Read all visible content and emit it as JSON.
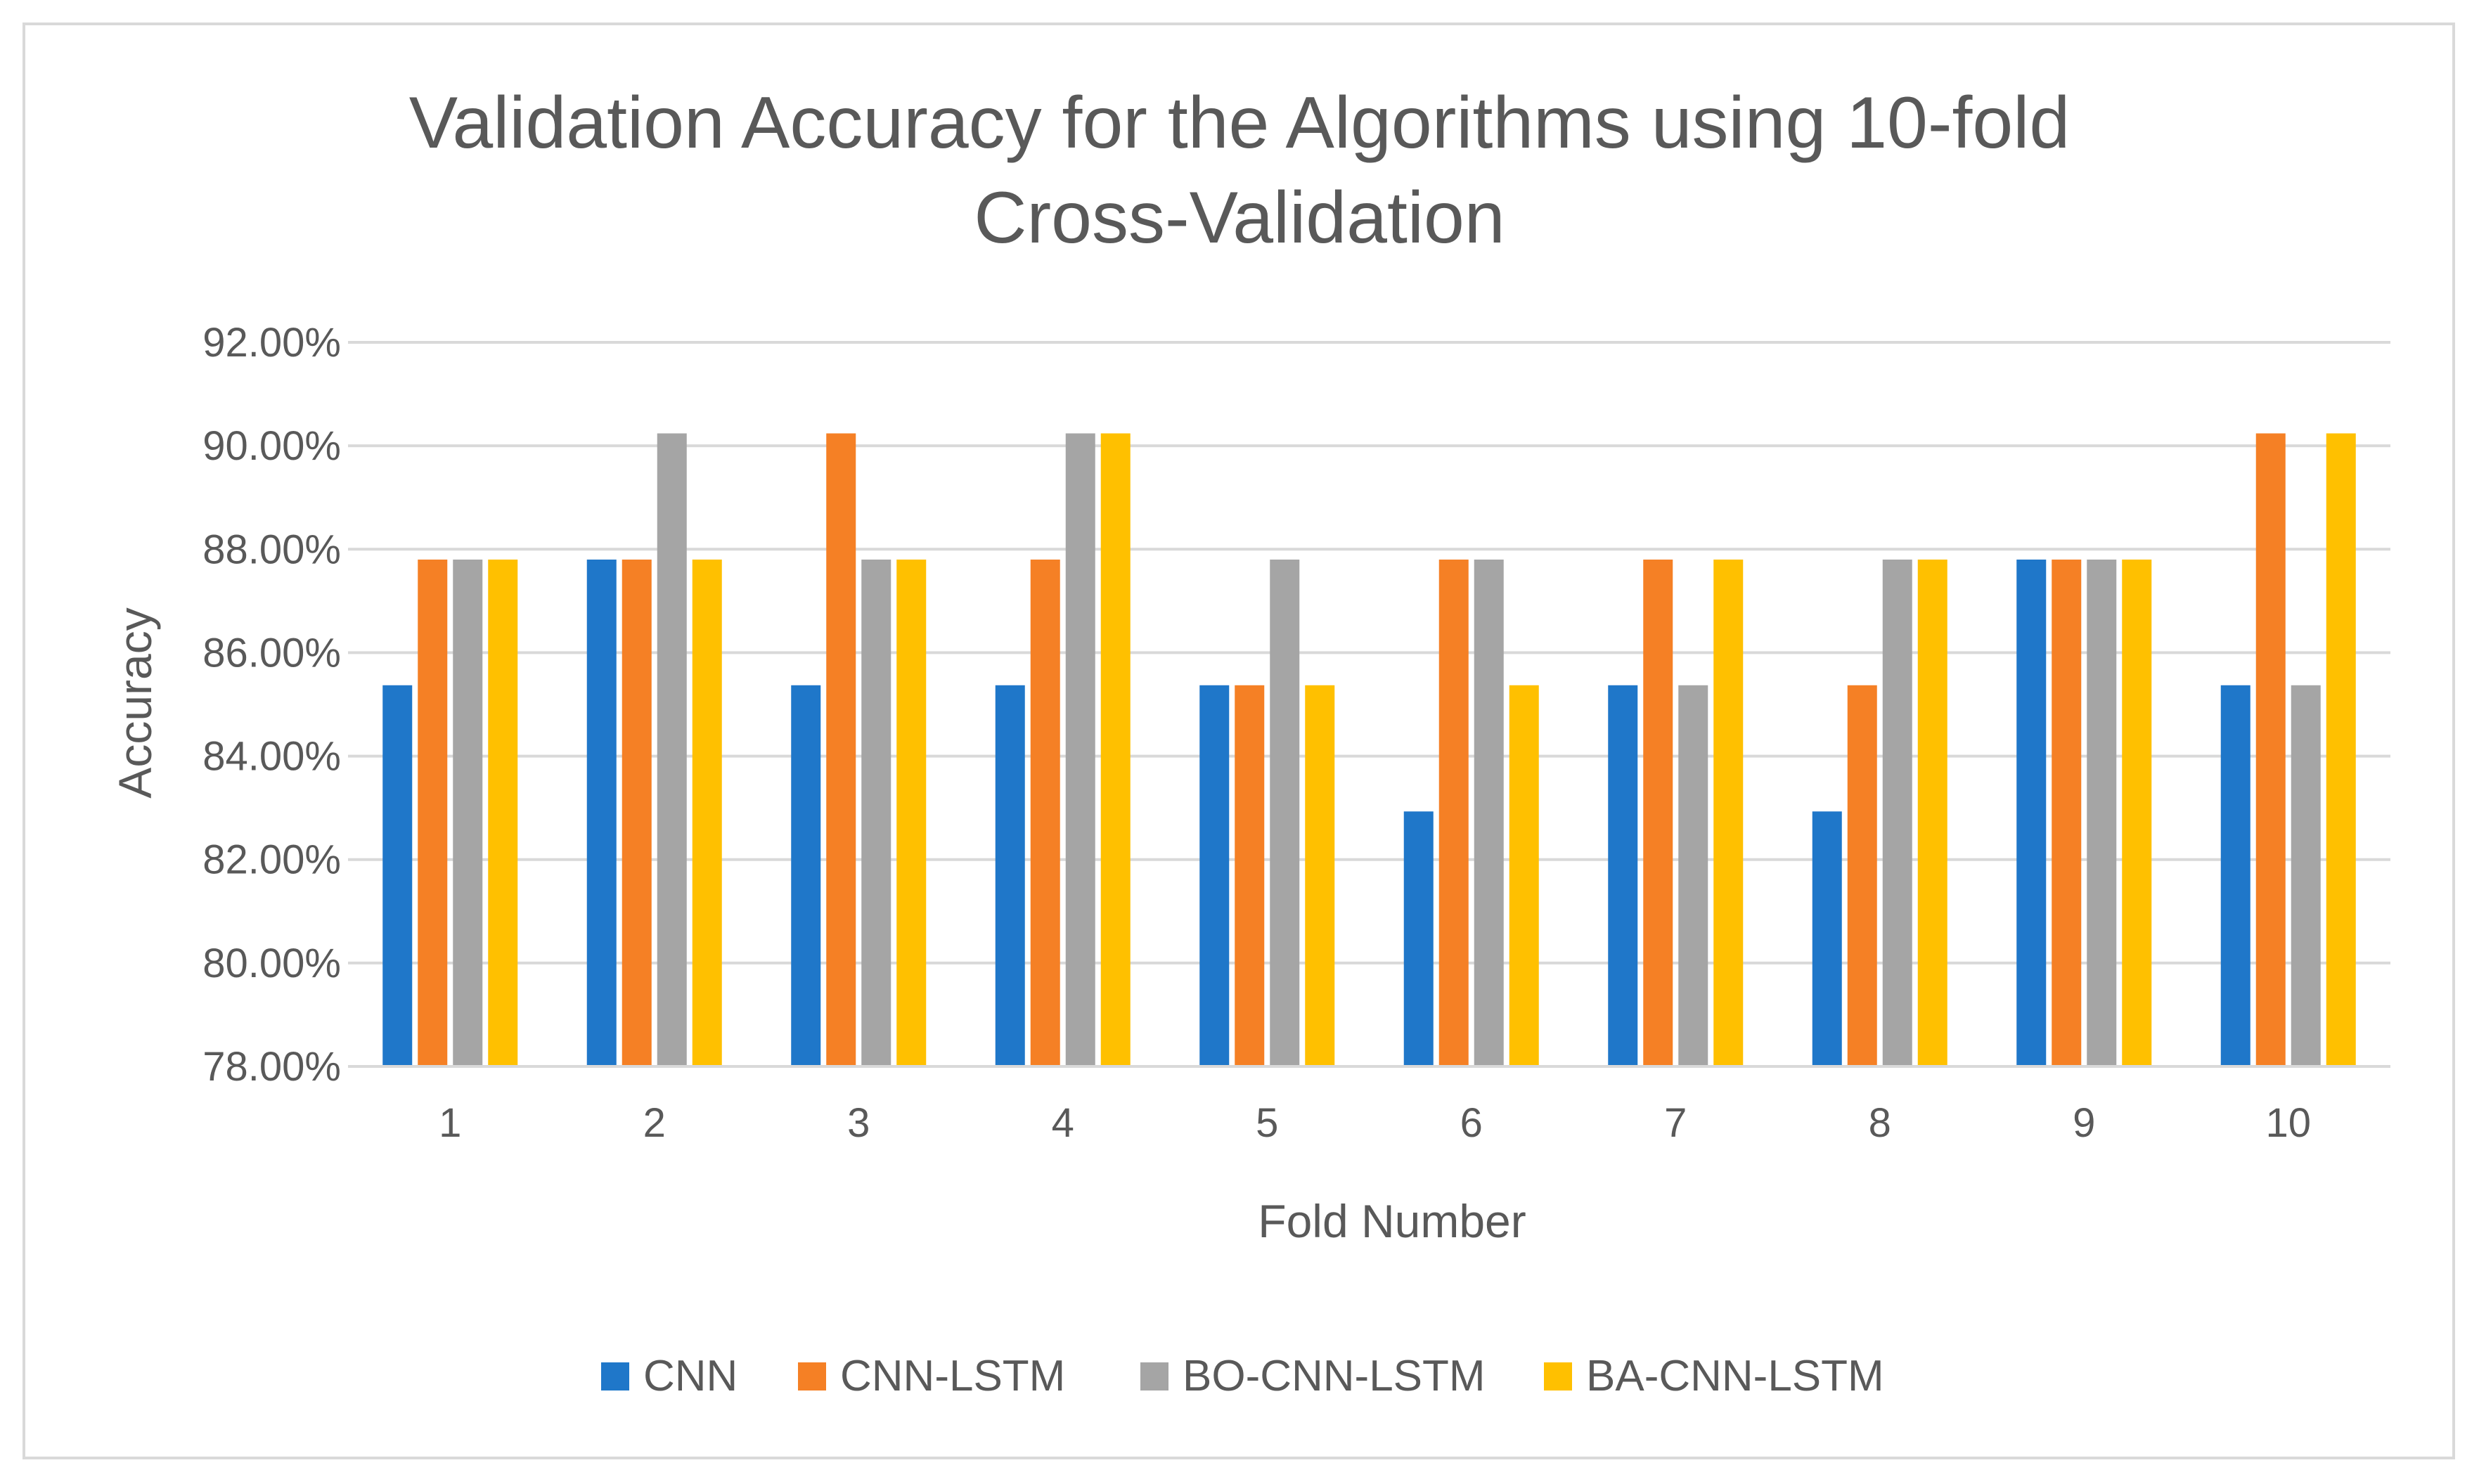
{
  "chart_data": {
    "type": "bar",
    "title_lines": [
      "Validation Accuracy for the Algorithms using 10-fold",
      "Cross-Validation"
    ],
    "xlabel": "Fold Number",
    "ylabel": "Accuracy",
    "categories": [
      "1",
      "2",
      "3",
      "4",
      "5",
      "6",
      "7",
      "8",
      "9",
      "10"
    ],
    "ylim": [
      78,
      92
    ],
    "y_ticks": [
      78,
      80,
      82,
      84,
      86,
      88,
      90,
      92
    ],
    "y_tick_labels": [
      "78.00%",
      "80.00%",
      "82.00%",
      "84.00%",
      "86.00%",
      "88.00%",
      "90.00%",
      "92.00%"
    ],
    "grid": true,
    "legend_position": "bottom",
    "series": [
      {
        "name": "CNN",
        "color": "#1f77c9",
        "values": [
          85.37,
          87.8,
          85.37,
          85.37,
          85.37,
          82.93,
          85.37,
          82.93,
          87.8,
          85.37
        ]
      },
      {
        "name": "CNN-LSTM",
        "color": "#f58025",
        "values": [
          87.8,
          87.8,
          90.24,
          87.8,
          85.37,
          87.8,
          87.8,
          85.37,
          87.8,
          90.24
        ]
      },
      {
        "name": "BO-CNN-LSTM",
        "color": "#a5a5a5",
        "values": [
          87.8,
          90.24,
          87.8,
          90.24,
          87.8,
          87.8,
          85.37,
          87.8,
          87.8,
          85.37
        ]
      },
      {
        "name": "BA-CNN-LSTM",
        "color": "#ffc000",
        "values": [
          87.8,
          87.8,
          87.8,
          90.24,
          85.37,
          85.37,
          87.8,
          87.8,
          87.8,
          90.24
        ]
      }
    ]
  }
}
